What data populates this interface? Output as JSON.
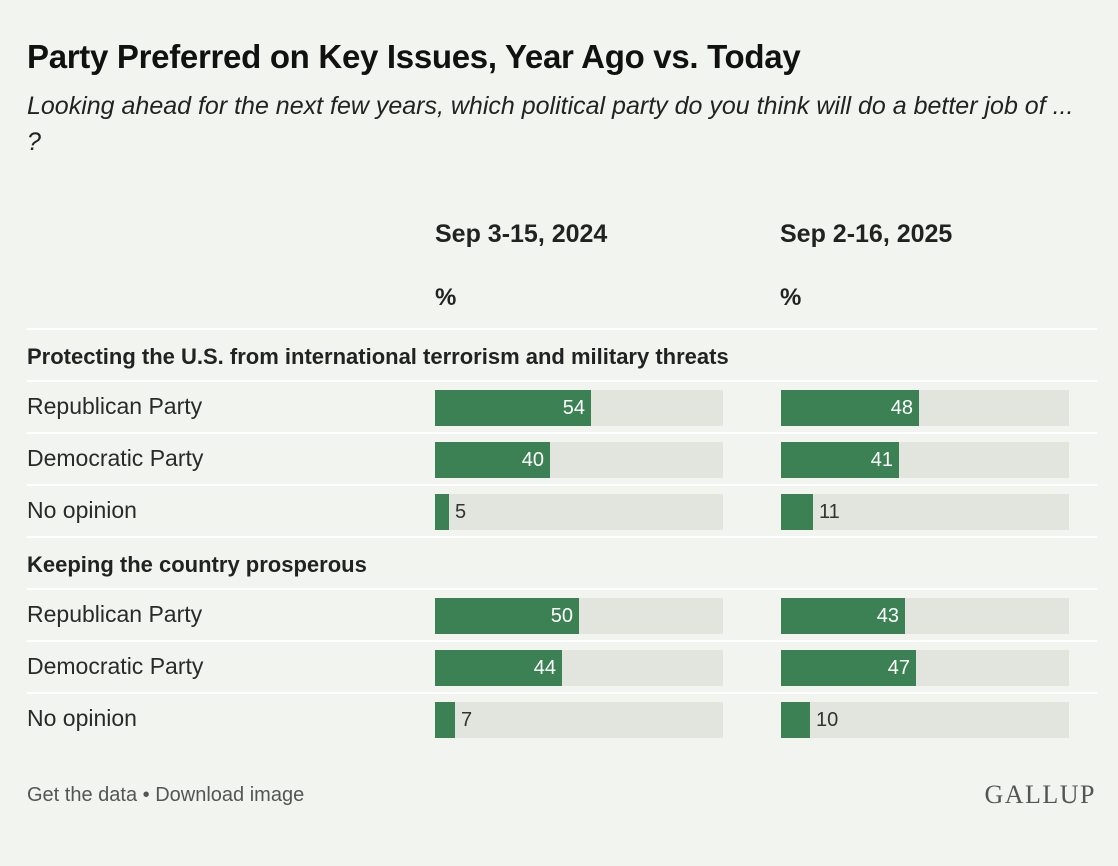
{
  "title": "Party Preferred on Key Issues, Year Ago vs. Today",
  "subtitle": "Looking ahead for the next few years, which political party do you think will do a better job of ... ?",
  "columns": [
    {
      "label": "Sep 3-15, 2024",
      "unit": "%"
    },
    {
      "label": "Sep 2-16, 2025",
      "unit": "%"
    }
  ],
  "chart_data": {
    "type": "bar",
    "orientation": "horizontal",
    "xlim": [
      0,
      100
    ],
    "series_names": [
      "Sep 3-15, 2024",
      "Sep 2-16, 2025"
    ],
    "groups": [
      {
        "label": "Protecting the U.S. from international terrorism and military threats",
        "rows": [
          {
            "label": "Republican Party",
            "values": [
              54,
              48
            ]
          },
          {
            "label": "Democratic Party",
            "values": [
              40,
              41
            ]
          },
          {
            "label": "No opinion",
            "values": [
              5,
              11
            ]
          }
        ]
      },
      {
        "label": "Keeping the country prosperous",
        "rows": [
          {
            "label": "Republican Party",
            "values": [
              50,
              43
            ]
          },
          {
            "label": "Democratic Party",
            "values": [
              44,
              47
            ]
          },
          {
            "label": "No opinion",
            "values": [
              7,
              10
            ]
          }
        ]
      }
    ]
  },
  "colors": {
    "bar": "#3c8153",
    "track": "#e1e5de",
    "background": "#f2f5ef"
  },
  "footer": {
    "get_data": "Get the data",
    "separator": "•",
    "download": "Download image"
  },
  "brand": "GALLUP"
}
